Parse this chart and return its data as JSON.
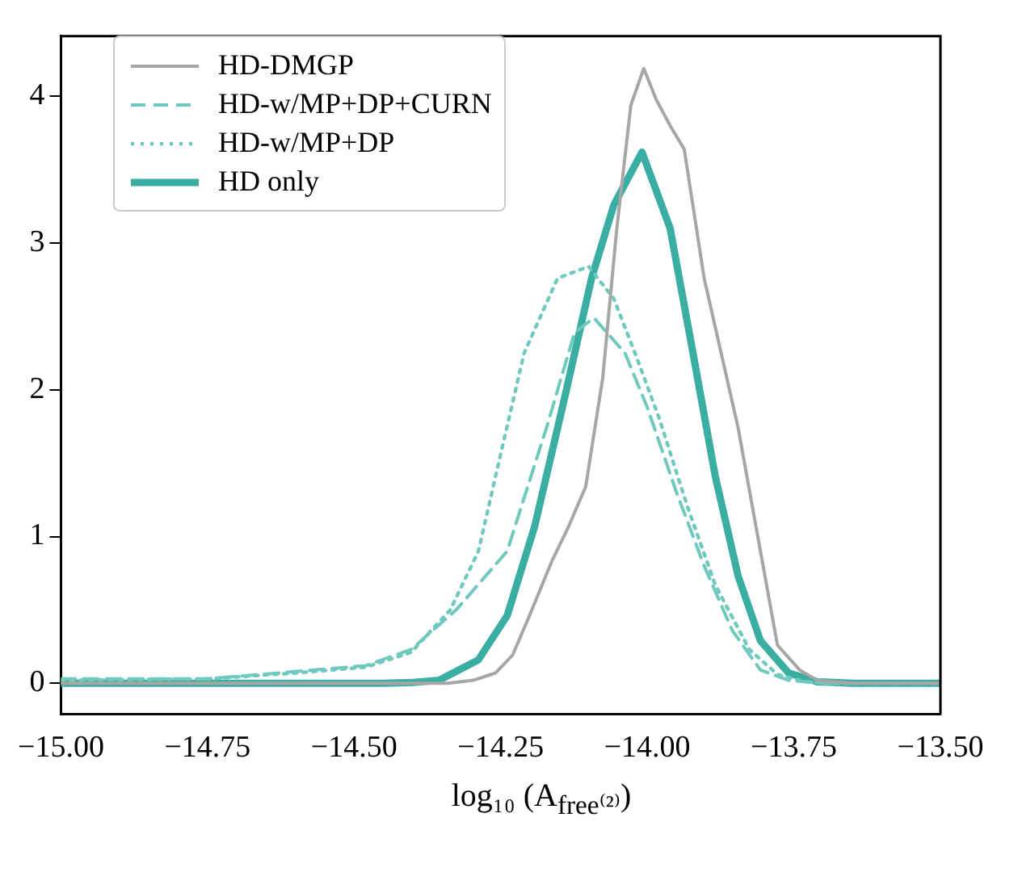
{
  "chart_data": {
    "type": "line",
    "xlabel": "log₁₀ (A$_{free⁽²⁾}$)",
    "xlim": [
      -15,
      -13.5
    ],
    "ylim": [
      -0.21,
      4.41
    ],
    "xticks": [
      {
        "value": -15,
        "label": "−15.00"
      },
      {
        "value": -14.75,
        "label": "−14.75"
      },
      {
        "value": -14.5,
        "label": "−14.50"
      },
      {
        "value": -14.25,
        "label": "−14.25"
      },
      {
        "value": -14,
        "label": "−14.00"
      },
      {
        "value": -13.75,
        "label": "−13.75"
      },
      {
        "value": -13.5,
        "label": "−13.50"
      }
    ],
    "yticks": [
      0,
      1,
      2,
      3,
      4
    ],
    "grid": false,
    "legend": "top left",
    "marker": "none",
    "series": [
      {
        "name": "HD-DMGP",
        "color": "#a6a6a6",
        "line_style": "solid",
        "x": [
          -15,
          -14.38,
          -14.34,
          -14.297,
          -14.259,
          -14.23,
          -14.201,
          -14.163,
          -14.134,
          -14.105,
          -14.076,
          -14.052,
          -14.028,
          -14.006,
          -13.985,
          -13.961,
          -13.937,
          -13.903,
          -13.845,
          -13.807,
          -13.778,
          -13.74,
          -13.71,
          -13.65,
          -13.5
        ],
        "values": [
          0,
          0,
          0,
          0.02,
          0.07,
          0.19,
          0.46,
          0.83,
          1.07,
          1.34,
          2.08,
          3.1,
          3.94,
          4.19,
          3.98,
          3.8,
          3.64,
          2.76,
          1.74,
          0.9,
          0.26,
          0.09,
          0.02,
          0,
          0
        ]
      },
      {
        "name": "HD-w/MP+DP+CURN",
        "color": "#70c9bf",
        "line_style": "dashed",
        "x": [
          -15,
          -14.75,
          -14.6,
          -14.48,
          -14.403,
          -14.326,
          -14.239,
          -14.172,
          -14.124,
          -14.091,
          -14.038,
          -14,
          -13.951,
          -13.903,
          -13.855,
          -13.807,
          -13.759,
          -13.7,
          -13.5
        ],
        "values": [
          0.03,
          0.03,
          0.08,
          0.12,
          0.23,
          0.5,
          0.9,
          1.74,
          2.39,
          2.49,
          2.25,
          1.88,
          1.31,
          0.8,
          0.36,
          0.09,
          0.02,
          0,
          0
        ]
      },
      {
        "name": "HD-w/MP+DP",
        "color": "#70c9bf",
        "line_style": "dotted",
        "x": [
          -15,
          -14.75,
          -14.6,
          -14.48,
          -14.403,
          -14.336,
          -14.288,
          -14.249,
          -14.21,
          -14.153,
          -14.1,
          -14.057,
          -14.018,
          -13.98,
          -13.932,
          -13.884,
          -13.826,
          -13.778,
          -13.73,
          -13.68,
          -13.5
        ],
        "values": [
          0.02,
          0.03,
          0.07,
          0.11,
          0.21,
          0.5,
          0.9,
          1.58,
          2.25,
          2.76,
          2.84,
          2.62,
          2.22,
          1.81,
          1.21,
          0.67,
          0.23,
          0.06,
          0.01,
          0,
          0
        ]
      },
      {
        "name": "HD only",
        "color": "#3aaea3",
        "line_style": "solid",
        "x": [
          -15,
          -14.45,
          -14.4,
          -14.355,
          -14.288,
          -14.239,
          -14.192,
          -14.143,
          -14.095,
          -14.057,
          -14.009,
          -13.961,
          -13.922,
          -13.884,
          -13.845,
          -13.807,
          -13.759,
          -13.71,
          -13.65,
          -13.5
        ],
        "values": [
          0,
          0,
          0.005,
          0.02,
          0.16,
          0.46,
          1.07,
          1.91,
          2.76,
          3.26,
          3.62,
          3.1,
          2.25,
          1.41,
          0.73,
          0.29,
          0.07,
          0.01,
          0,
          0
        ]
      }
    ]
  }
}
